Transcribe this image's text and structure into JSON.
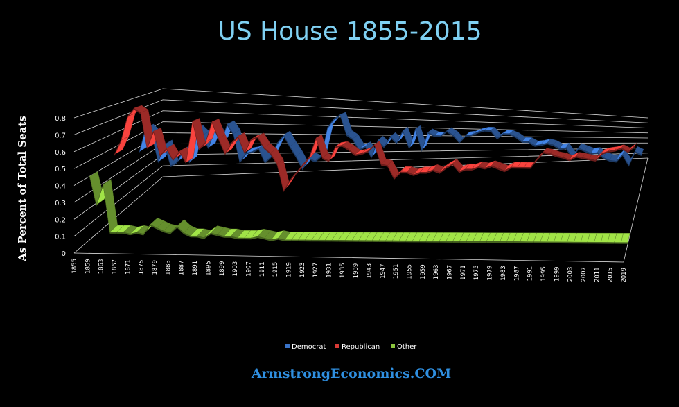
{
  "chart_data": {
    "type": "line",
    "title": "US House 1855-2015",
    "ylabel": "As Percent of Total Seats",
    "xlabel": "",
    "ylim": [
      0,
      0.8
    ],
    "y_ticks": [
      "0",
      "0.1",
      "0.2",
      "0.3",
      "0.4",
      "0.5",
      "0.6",
      "0.7",
      "0.8"
    ],
    "x_ticks": [
      "1855",
      "1859",
      "1863",
      "1867",
      "1871",
      "1875",
      "1879",
      "1883",
      "1887",
      "1891",
      "1895",
      "1899",
      "1903",
      "1907",
      "1911",
      "1915",
      "1919",
      "1923",
      "1927",
      "1931",
      "1935",
      "1939",
      "1943",
      "1947",
      "1951",
      "1955",
      "1959",
      "1963",
      "1967",
      "1971",
      "1975",
      "1979",
      "1983",
      "1987",
      "1991",
      "1995",
      "1999",
      "2003",
      "2007",
      "2011",
      "2015",
      "2019"
    ],
    "x_start": 1855,
    "x_step": 2,
    "legend_position": "bottom",
    "series": [
      {
        "name": "Democrat",
        "color": "#3a73c8",
        "values": [
          0.36,
          0.55,
          0.5,
          0.28,
          0.42,
          0.25,
          0.28,
          0.38,
          0.28,
          0.55,
          0.5,
          0.4,
          0.55,
          0.45,
          0.6,
          0.52,
          0.28,
          0.36,
          0.37,
          0.4,
          0.28,
          0.33,
          0.45,
          0.52,
          0.42,
          0.33,
          0.22,
          0.32,
          0.29,
          0.34,
          0.6,
          0.68,
          0.72,
          0.54,
          0.5,
          0.4,
          0.43,
          0.33,
          0.49,
          0.43,
          0.53,
          0.47,
          0.59,
          0.42,
          0.61,
          0.4,
          0.58,
          0.55,
          0.55,
          0.6,
          0.56,
          0.49,
          0.56,
          0.57,
          0.6,
          0.62,
          0.62,
          0.54,
          0.59,
          0.59,
          0.56,
          0.51,
          0.51,
          0.47,
          0.48,
          0.5,
          0.48,
          0.44,
          0.45,
          0.34,
          0.45,
          0.42,
          0.39,
          0.4,
          0.34,
          0.31,
          0.3,
          0.38,
          0.25,
          0.42,
          0.38
        ]
      },
      {
        "name": "Republican",
        "color": "#d93a36",
        "values": [
          0.45,
          0.55,
          0.72,
          0.78,
          0.75,
          0.5,
          0.62,
          0.45,
          0.5,
          0.42,
          0.48,
          0.4,
          0.7,
          0.5,
          0.55,
          0.7,
          0.58,
          0.47,
          0.55,
          0.6,
          0.48,
          0.58,
          0.6,
          0.52,
          0.48,
          0.4,
          0.2,
          0.28,
          0.34,
          0.4,
          0.46,
          0.6,
          0.45,
          0.43,
          0.54,
          0.55,
          0.52,
          0.48,
          0.49,
          0.51,
          0.56,
          0.41,
          0.4,
          0.3,
          0.35,
          0.35,
          0.33,
          0.35,
          0.35,
          0.37,
          0.35,
          0.39,
          0.42,
          0.36,
          0.38,
          0.38,
          0.4,
          0.39,
          0.41,
          0.39,
          0.37,
          0.4,
          0.4,
          0.4,
          0.4,
          0.47,
          0.53,
          0.52,
          0.5,
          0.49,
          0.47,
          0.5,
          0.49,
          0.48,
          0.47,
          0.53,
          0.55,
          0.56,
          0.58,
          0.55,
          0.6
        ]
      },
      {
        "name": "Other",
        "color": "#8cc63e",
        "values": [
          0.4,
          0.22,
          0.35,
          0.05,
          0.05,
          0.05,
          0.04,
          0.05,
          0.04,
          0.1,
          0.08,
          0.06,
          0.05,
          0.09,
          0.05,
          0.03,
          0.03,
          0.02,
          0.05,
          0.04,
          0.03,
          0.03,
          0.02,
          0.02,
          0.02,
          0.03,
          0.02,
          0.01,
          0.02,
          0.01,
          0.01,
          0.01,
          0.01,
          0.01,
          0.01,
          0.01,
          0.01,
          0.01,
          0.01,
          0.01,
          0.01,
          0.01,
          0.01,
          0.01,
          0.01,
          0.01,
          0.01,
          0.01,
          0.01,
          0.01,
          0.01,
          0.01,
          0.01,
          0.01,
          0.01,
          0.01,
          0.01,
          0.01,
          0.01,
          0.01,
          0.01,
          0.01,
          0.01,
          0.01,
          0.01,
          0.01,
          0.01,
          0.01,
          0.01,
          0.01,
          0.01,
          0.01,
          0.01,
          0.01,
          0.01,
          0.01,
          0.01,
          0.01,
          0.01,
          0.01,
          0.01
        ]
      }
    ]
  },
  "footer": "ArmstrongEconomics.COM"
}
